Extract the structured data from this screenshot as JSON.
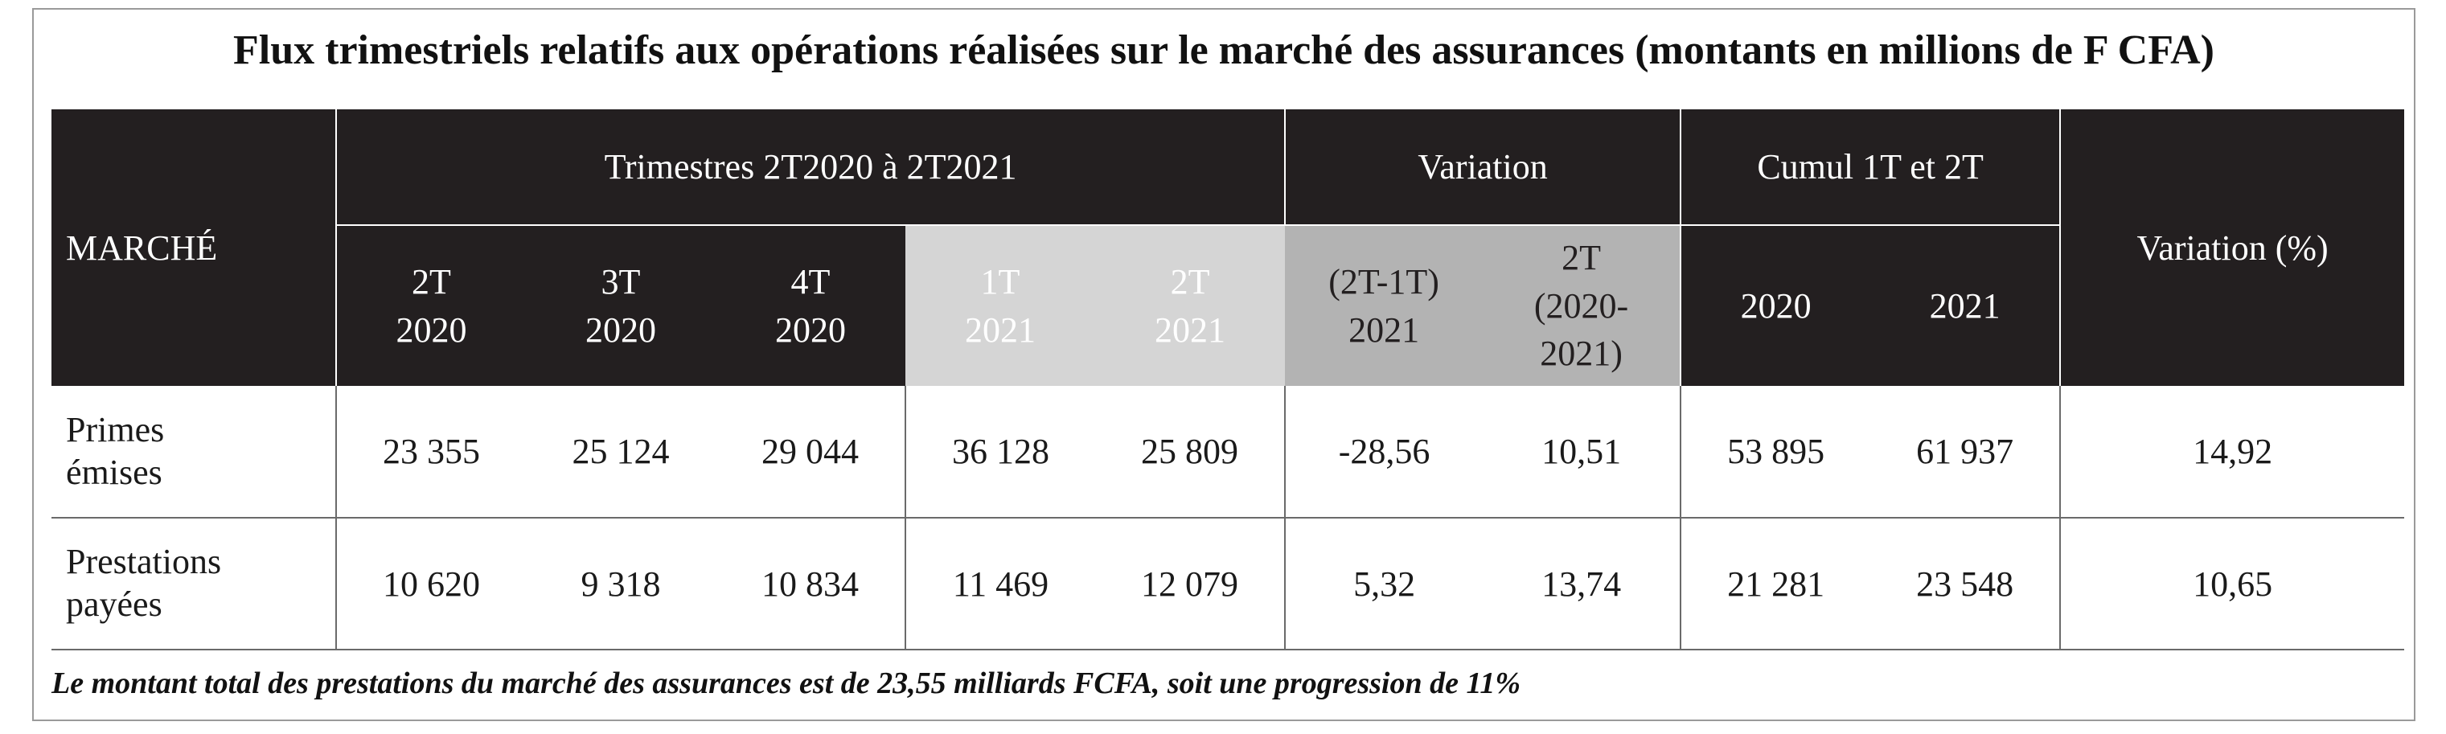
{
  "title": "Flux trimestriels relatifs aux opérations réalisées sur le marché des assurances (montants en millions de F CFA)",
  "header": {
    "marche": "MARCHÉ",
    "group_trimestres": "Trimestres 2T2020 à 2T2021",
    "group_variation": "Variation",
    "group_cumul": "Cumul 1T et 2T",
    "variation_pct": "Variation (%)",
    "cols": [
      {
        "line1": "2T",
        "line2": "2020"
      },
      {
        "line1": "3T",
        "line2": "2020"
      },
      {
        "line1": "4T",
        "line2": "2020"
      },
      {
        "line1": "1T",
        "line2": "2021"
      },
      {
        "line1": "2T",
        "line2": "2021"
      },
      {
        "line1": "(2T-1T)",
        "line2": "2021"
      },
      {
        "line1": "2T",
        "line2": "(2020-",
        "line3": "2021)"
      },
      {
        "line1": "2020"
      },
      {
        "line1": "2021"
      }
    ]
  },
  "rows": [
    {
      "label_line1": "Primes",
      "label_line2": "émises",
      "values": [
        "23 355",
        "25 124",
        "29 044",
        "36 128",
        "25 809",
        "-28,56",
        "10,51",
        "53 895",
        "61 937",
        "14,92"
      ]
    },
    {
      "label_line1": "Prestations",
      "label_line2": "payées",
      "values": [
        "10 620",
        "9 318",
        "10 834",
        "11 469",
        "12 079",
        "5,32",
        "13,74",
        "21 281",
        "23 548",
        "10,65"
      ]
    }
  ],
  "footnote": "Le montant total des prestations du marché des assurances est de 23,55 milliards FCFA, soit une progression de 11%",
  "colors": {
    "header_dark": "#231f20",
    "header_light": "#d5d5d5",
    "header_mid": "#b3b3b3"
  }
}
